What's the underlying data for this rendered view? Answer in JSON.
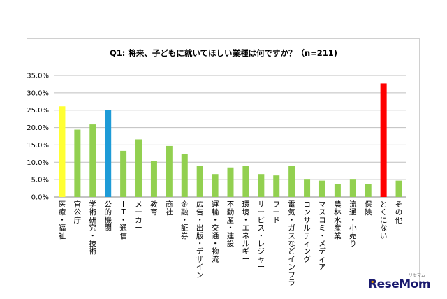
{
  "chart_data": {
    "type": "bar",
    "title": "Q1: 将来、子どもに就いてほしい業種は何ですか？（n=211)",
    "xlabel": "",
    "ylabel": "",
    "ylim": [
      0,
      35
    ],
    "ytick_labels": [
      "0.0%",
      "5.0%",
      "10.0%",
      "15.0%",
      "20.0%",
      "25.0%",
      "30.0%",
      "35.0%"
    ],
    "grid": true,
    "categories": [
      "医療・福祉",
      "官公庁",
      "学術研究・技術",
      "公的機関",
      "IT・通信",
      "メーカー",
      "教育",
      "商社",
      "金融・証券",
      "広告・出版・デザイン",
      "運輸・交通・物流",
      "不動産・建設",
      "環境・エネルギー",
      "サービス・レジャー",
      "フード",
      "電気・ガスなどインフラ",
      "コンサルティング",
      "マスコミ・メディア",
      "農林水産業",
      "流通・小売り",
      "保険",
      "とくにない",
      "その他"
    ],
    "values": [
      26.1,
      19.4,
      20.9,
      25.1,
      13.3,
      16.6,
      10.4,
      14.7,
      12.3,
      9.0,
      6.6,
      8.5,
      9.0,
      6.6,
      6.2,
      9.0,
      5.2,
      4.7,
      3.8,
      5.2,
      3.8,
      32.7,
      4.7
    ],
    "colors": [
      "#ffff33",
      "#92d050",
      "#92d050",
      "#1e9bd7",
      "#92d050",
      "#92d050",
      "#92d050",
      "#92d050",
      "#92d050",
      "#92d050",
      "#92d050",
      "#92d050",
      "#92d050",
      "#92d050",
      "#92d050",
      "#92d050",
      "#92d050",
      "#92d050",
      "#92d050",
      "#92d050",
      "#92d050",
      "#ff0000",
      "#92d050"
    ]
  },
  "brand": {
    "name": "ReseMom",
    "ruby": "リセマム"
  }
}
